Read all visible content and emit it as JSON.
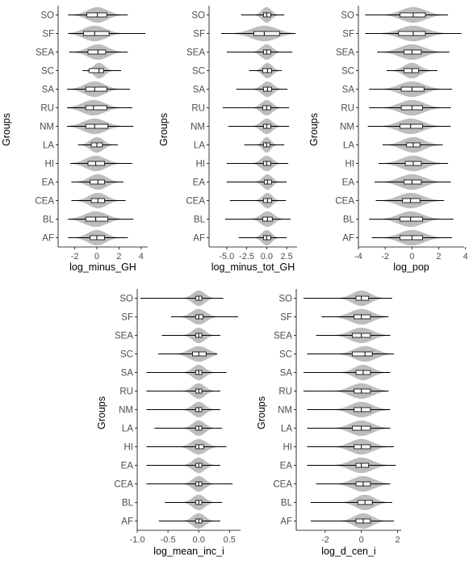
{
  "chart_data": [
    {
      "type": "violin",
      "xlabel": "log_minus_GH",
      "ylabel": "Groups",
      "categories": [
        "SO",
        "SF",
        "SEA",
        "SC",
        "SA",
        "RU",
        "NM",
        "LA",
        "HI",
        "EA",
        "CEA",
        "BL",
        "AF"
      ],
      "xlim": [
        -3.5,
        4.6
      ],
      "xticks": [
        -2,
        0,
        2,
        4
      ],
      "xtick_labels": [
        "-2",
        "0",
        "2",
        "4"
      ],
      "groups": [
        {
          "name": "SO",
          "min": -2.6,
          "q1": -0.9,
          "median": 0.05,
          "q3": 0.9,
          "max": 2.8,
          "spread": 0.9
        },
        {
          "name": "SF",
          "min": -2.6,
          "q1": -1.2,
          "median": -0.2,
          "q3": 1.1,
          "max": 4.4,
          "spread": 1.0
        },
        {
          "name": "SEA",
          "min": -2.5,
          "q1": -0.8,
          "median": 0.1,
          "q3": 0.8,
          "max": 2.8,
          "spread": 0.9
        },
        {
          "name": "SC",
          "min": -1.3,
          "q1": -0.7,
          "median": 0.2,
          "q3": 0.6,
          "max": 2.2,
          "spread": 0.5
        },
        {
          "name": "SA",
          "min": -2.7,
          "q1": -1.0,
          "median": -0.2,
          "q3": 0.9,
          "max": 3.0,
          "spread": 0.9
        },
        {
          "name": "RU",
          "min": -2.7,
          "q1": -1.0,
          "median": -0.3,
          "q3": 0.9,
          "max": 3.2,
          "spread": 1.0
        },
        {
          "name": "NM",
          "min": -2.7,
          "q1": -1.0,
          "median": -0.2,
          "q3": 1.0,
          "max": 3.3,
          "spread": 1.0
        },
        {
          "name": "LA",
          "min": -1.7,
          "q1": -0.5,
          "median": 0.0,
          "q3": 0.5,
          "max": 1.9,
          "spread": 0.6
        },
        {
          "name": "HI",
          "min": -2.4,
          "q1": -0.8,
          "median": -0.1,
          "q3": 0.7,
          "max": 3.2,
          "spread": 0.9
        },
        {
          "name": "EA",
          "min": -2.3,
          "q1": -0.6,
          "median": 0.1,
          "q3": 0.7,
          "max": 2.4,
          "spread": 0.8
        },
        {
          "name": "CEA",
          "min": -2.3,
          "q1": -0.5,
          "median": 0.1,
          "q3": 0.7,
          "max": 2.6,
          "spread": 0.8
        },
        {
          "name": "BL",
          "min": -2.6,
          "q1": -1.0,
          "median": -0.1,
          "q3": 1.0,
          "max": 3.3,
          "spread": 1.0
        },
        {
          "name": "AF",
          "min": -2.6,
          "q1": -0.6,
          "median": 0.0,
          "q3": 0.7,
          "max": 2.8,
          "spread": 0.8
        }
      ]
    },
    {
      "type": "violin",
      "xlabel": "log_minus_tot_GH",
      "ylabel": "Groups",
      "categories": [
        "SO",
        "SF",
        "SEA",
        "SC",
        "SA",
        "RU",
        "NM",
        "LA",
        "HI",
        "EA",
        "CEA",
        "BL",
        "AF"
      ],
      "xlim": [
        -7.2,
        3.8
      ],
      "xticks": [
        -5,
        -2.5,
        0,
        2.5
      ],
      "xtick_labels": [
        "-5.0",
        "-2.5",
        "0.0",
        "2.5"
      ],
      "groups": [
        {
          "name": "SO",
          "min": -3.2,
          "q1": -0.4,
          "median": 0.0,
          "q3": 0.5,
          "max": 2.2,
          "spread": 0.6
        },
        {
          "name": "SF",
          "min": -5.7,
          "q1": -1.6,
          "median": -0.3,
          "q3": 1.6,
          "max": 3.6,
          "spread": 1.6
        },
        {
          "name": "SEA",
          "min": -5.0,
          "q1": -0.4,
          "median": 0.0,
          "q3": 0.5,
          "max": 3.2,
          "spread": 0.7
        },
        {
          "name": "SC",
          "min": -2.2,
          "q1": -0.5,
          "median": 0.1,
          "q3": 0.6,
          "max": 1.9,
          "spread": 0.6
        },
        {
          "name": "SA",
          "min": -3.8,
          "q1": -0.4,
          "median": 0.1,
          "q3": 0.6,
          "max": 2.6,
          "spread": 0.7
        },
        {
          "name": "RU",
          "min": -5.5,
          "q1": -0.5,
          "median": 0.0,
          "q3": 0.5,
          "max": 2.8,
          "spread": 0.7
        },
        {
          "name": "NM",
          "min": -4.8,
          "q1": -0.4,
          "median": 0.0,
          "q3": 0.5,
          "max": 2.8,
          "spread": 0.7
        },
        {
          "name": "LA",
          "min": -2.8,
          "q1": -0.4,
          "median": 0.0,
          "q3": 0.4,
          "max": 2.2,
          "spread": 0.5
        },
        {
          "name": "HI",
          "min": -5.0,
          "q1": -0.4,
          "median": 0.0,
          "q3": 0.5,
          "max": 2.7,
          "spread": 0.7
        },
        {
          "name": "EA",
          "min": -5.0,
          "q1": -0.3,
          "median": 0.1,
          "q3": 0.6,
          "max": 2.5,
          "spread": 0.6
        },
        {
          "name": "CEA",
          "min": -4.6,
          "q1": -0.4,
          "median": 0.1,
          "q3": 0.6,
          "max": 2.4,
          "spread": 0.6
        },
        {
          "name": "BL",
          "min": -5.2,
          "q1": -0.5,
          "median": 0.1,
          "q3": 0.7,
          "max": 3.0,
          "spread": 0.8
        },
        {
          "name": "AF",
          "min": -3.5,
          "q1": -0.4,
          "median": 0.0,
          "q3": 0.5,
          "max": 2.5,
          "spread": 0.6
        }
      ]
    },
    {
      "type": "violin",
      "xlabel": "log_pop",
      "ylabel": "Groups",
      "categories": [
        "SO",
        "SF",
        "SEA",
        "SC",
        "SA",
        "RU",
        "NM",
        "LA",
        "HI",
        "EA",
        "CEA",
        "BL",
        "AF"
      ],
      "xlim": [
        -4.0,
        3.9
      ],
      "xticks": [
        -4,
        -2,
        0,
        2,
        4
      ],
      "xtick_labels": [
        "-4",
        "-2",
        "0",
        "2",
        "4"
      ],
      "groups": [
        {
          "name": "SO",
          "min": -3.5,
          "q1": -0.9,
          "median": 0.1,
          "q3": 1.0,
          "max": 2.7,
          "spread": 0.9
        },
        {
          "name": "SF",
          "min": -3.5,
          "q1": -1.0,
          "median": 0.1,
          "q3": 1.0,
          "max": 3.7,
          "spread": 1.0
        },
        {
          "name": "SEA",
          "min": -2.6,
          "q1": -0.6,
          "median": 0.0,
          "q3": 0.7,
          "max": 2.8,
          "spread": 0.9
        },
        {
          "name": "SC",
          "min": -1.9,
          "q1": -0.6,
          "median": 0.0,
          "q3": 0.5,
          "max": 1.9,
          "spread": 0.6
        },
        {
          "name": "SA",
          "min": -3.2,
          "q1": -0.8,
          "median": 0.0,
          "q3": 0.9,
          "max": 3.0,
          "spread": 0.9
        },
        {
          "name": "RU",
          "min": -3.2,
          "q1": -0.8,
          "median": 0.0,
          "q3": 0.8,
          "max": 2.9,
          "spread": 0.9
        },
        {
          "name": "NM",
          "min": -3.3,
          "q1": -0.9,
          "median": -0.1,
          "q3": 0.8,
          "max": 2.9,
          "spread": 0.9
        },
        {
          "name": "LA",
          "min": -2.2,
          "q1": -0.4,
          "median": 0.1,
          "q3": 0.6,
          "max": 2.3,
          "spread": 0.8
        },
        {
          "name": "HI",
          "min": -2.5,
          "q1": -0.5,
          "median": 0.1,
          "q3": 0.7,
          "max": 2.7,
          "spread": 0.9
        },
        {
          "name": "EA",
          "min": -2.8,
          "q1": -0.6,
          "median": 0.0,
          "q3": 0.7,
          "max": 2.9,
          "spread": 0.9
        },
        {
          "name": "CEA",
          "min": -2.7,
          "q1": -0.7,
          "median": -0.1,
          "q3": 0.6,
          "max": 2.4,
          "spread": 0.9
        },
        {
          "name": "BL",
          "min": -3.2,
          "q1": -0.9,
          "median": -0.1,
          "q3": 0.8,
          "max": 3.1,
          "spread": 0.9
        },
        {
          "name": "AF",
          "min": -3.0,
          "q1": -0.9,
          "median": 0.0,
          "q3": 0.8,
          "max": 3.0,
          "spread": 0.9
        }
      ]
    },
    {
      "type": "violin",
      "xlabel": "log_mean_inc_i",
      "ylabel": "Groups",
      "categories": [
        "SO",
        "SF",
        "SEA",
        "SC",
        "SA",
        "RU",
        "NM",
        "LA",
        "HI",
        "EA",
        "CEA",
        "BL",
        "AF"
      ],
      "xlim": [
        -1.0,
        0.68
      ],
      "xticks": [
        -1.0,
        -0.5,
        0.0,
        0.5
      ],
      "xtick_labels": [
        "-1.0",
        "-0.5",
        "0.0",
        "0.5"
      ],
      "groups": [
        {
          "name": "SO",
          "min": -0.95,
          "q1": -0.05,
          "median": 0.0,
          "q3": 0.05,
          "max": 0.4,
          "spread": 0.1
        },
        {
          "name": "SF",
          "min": -0.45,
          "q1": -0.05,
          "median": 0.0,
          "q3": 0.07,
          "max": 0.64,
          "spread": 0.12
        },
        {
          "name": "SEA",
          "min": -0.6,
          "q1": -0.05,
          "median": 0.0,
          "q3": 0.05,
          "max": 0.35,
          "spread": 0.1
        },
        {
          "name": "SC",
          "min": -0.66,
          "q1": -0.1,
          "median": 0.0,
          "q3": 0.12,
          "max": 0.3,
          "spread": 0.15
        },
        {
          "name": "SA",
          "min": -0.85,
          "q1": -0.05,
          "median": 0.0,
          "q3": 0.05,
          "max": 0.45,
          "spread": 0.1
        },
        {
          "name": "RU",
          "min": -0.85,
          "q1": -0.05,
          "median": 0.0,
          "q3": 0.05,
          "max": 0.35,
          "spread": 0.1
        },
        {
          "name": "NM",
          "min": -0.85,
          "q1": -0.05,
          "median": 0.0,
          "q3": 0.05,
          "max": 0.35,
          "spread": 0.1
        },
        {
          "name": "LA",
          "min": -0.72,
          "q1": -0.05,
          "median": 0.0,
          "q3": 0.05,
          "max": 0.38,
          "spread": 0.1
        },
        {
          "name": "HI",
          "min": -0.85,
          "q1": -0.05,
          "median": 0.0,
          "q3": 0.08,
          "max": 0.45,
          "spread": 0.12
        },
        {
          "name": "EA",
          "min": -0.85,
          "q1": -0.05,
          "median": 0.0,
          "q3": 0.05,
          "max": 0.35,
          "spread": 0.1
        },
        {
          "name": "CEA",
          "min": -0.85,
          "q1": -0.05,
          "median": 0.0,
          "q3": 0.05,
          "max": 0.55,
          "spread": 0.1
        },
        {
          "name": "BL",
          "min": -0.55,
          "q1": -0.05,
          "median": 0.0,
          "q3": 0.05,
          "max": 0.38,
          "spread": 0.1
        },
        {
          "name": "AF",
          "min": -0.65,
          "q1": -0.05,
          "median": 0.0,
          "q3": 0.05,
          "max": 0.35,
          "spread": 0.1
        }
      ]
    },
    {
      "type": "violin",
      "xlabel": "log_d_cen_i",
      "ylabel": "Groups",
      "categories": [
        "SO",
        "SF",
        "SEA",
        "SC",
        "SA",
        "RU",
        "NM",
        "LA",
        "HI",
        "EA",
        "CEA",
        "BL",
        "AF"
      ],
      "xlim": [
        -3.6,
        2.2
      ],
      "xticks": [
        -2,
        0,
        2
      ],
      "xtick_labels": [
        "-2",
        "0",
        "2"
      ],
      "groups": [
        {
          "name": "SO",
          "min": -3.2,
          "q1": -0.3,
          "median": 0.0,
          "q3": 0.4,
          "max": 1.7,
          "spread": 0.5
        },
        {
          "name": "SF",
          "min": -2.2,
          "q1": -0.4,
          "median": 0.0,
          "q3": 0.5,
          "max": 1.5,
          "spread": 0.6
        },
        {
          "name": "SEA",
          "min": -2.5,
          "q1": -0.5,
          "median": 0.0,
          "q3": 0.5,
          "max": 1.6,
          "spread": 0.6
        },
        {
          "name": "SC",
          "min": -3.0,
          "q1": -0.5,
          "median": 0.2,
          "q3": 0.6,
          "max": 1.8,
          "spread": 0.6
        },
        {
          "name": "SA",
          "min": -3.2,
          "q1": -0.3,
          "median": 0.1,
          "q3": 0.5,
          "max": 1.6,
          "spread": 0.5
        },
        {
          "name": "RU",
          "min": -3.2,
          "q1": -0.4,
          "median": 0.0,
          "q3": 0.5,
          "max": 1.5,
          "spread": 0.6
        },
        {
          "name": "NM",
          "min": -3.0,
          "q1": -0.4,
          "median": 0.0,
          "q3": 0.5,
          "max": 1.6,
          "spread": 0.6
        },
        {
          "name": "LA",
          "min": -3.0,
          "q1": -0.5,
          "median": 0.0,
          "q3": 0.5,
          "max": 1.6,
          "spread": 0.6
        },
        {
          "name": "HI",
          "min": -3.0,
          "q1": -0.4,
          "median": 0.0,
          "q3": 0.5,
          "max": 1.8,
          "spread": 0.6
        },
        {
          "name": "EA",
          "min": -3.0,
          "q1": -0.3,
          "median": 0.0,
          "q3": 0.4,
          "max": 1.9,
          "spread": 0.6
        },
        {
          "name": "CEA",
          "min": -2.5,
          "q1": -0.3,
          "median": 0.1,
          "q3": 0.5,
          "max": 1.6,
          "spread": 0.6
        },
        {
          "name": "BL",
          "min": -2.8,
          "q1": -0.2,
          "median": 0.2,
          "q3": 0.6,
          "max": 1.7,
          "spread": 0.5
        },
        {
          "name": "AF",
          "min": -2.8,
          "q1": -0.3,
          "median": 0.1,
          "q3": 0.5,
          "max": 1.8,
          "spread": 0.5
        }
      ]
    }
  ],
  "colors": {
    "violin_fill": "#bdbdbd",
    "box_fill": "#ffffff",
    "box_stroke": "#000000",
    "whisker": "#000000",
    "axis_text": "#4d4d4d",
    "axis_title": "#000000",
    "axis_line": "#000000"
  }
}
